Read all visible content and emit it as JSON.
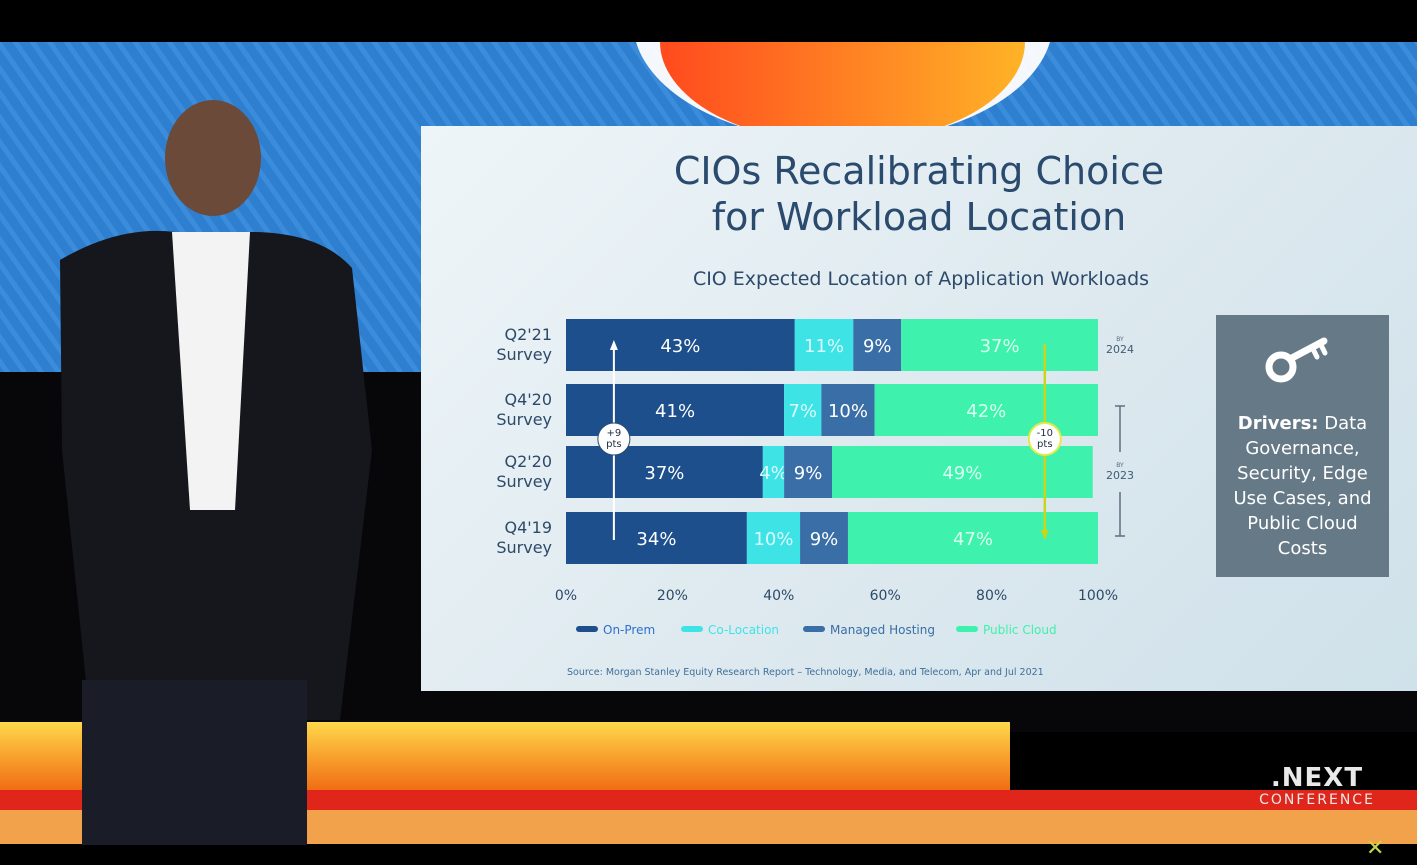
{
  "slide": {
    "title_line1": "CIOs Recalibrating Choice",
    "title_line2": "for Workload Location"
  },
  "drivers": {
    "label": "Drivers:",
    "text": "Data Governance, Security, Edge Use Cases, and Public Cloud Costs"
  },
  "branding": {
    "logo_line1": ".NEXT",
    "logo_line2": "CONFERENCE"
  },
  "colors": {
    "on_prem": "#1d4f8c",
    "co_location": "#3ee3e6",
    "managed_hosting": "#3a6ea6",
    "public_cloud": "#3ef2ad",
    "title": "#2a4a6e"
  },
  "chart_data": {
    "type": "bar",
    "orientation": "horizontal",
    "stacked": true,
    "title": "CIO Expected Location of Application Workloads",
    "categories": [
      "Q2'21\nSurvey",
      "Q4'20\nSurvey",
      "Q2'20\nSurvey",
      "Q4'19\nSurvey"
    ],
    "series": [
      {
        "name": "On-Prem",
        "values": [
          43,
          41,
          37,
          34
        ],
        "labels": [
          "43%",
          "41%",
          "37%",
          "34%"
        ]
      },
      {
        "name": "Co-Location",
        "values": [
          11,
          7,
          4,
          10
        ],
        "labels": [
          "11%",
          "7%",
          "4%",
          "10%"
        ]
      },
      {
        "name": "Managed Hosting",
        "values": [
          9,
          10,
          9,
          9
        ],
        "labels": [
          "9%",
          "10%",
          "9%",
          "9%"
        ]
      },
      {
        "name": "Public Cloud",
        "values": [
          37,
          42,
          49,
          47
        ],
        "labels": [
          "37%",
          "42%",
          "49%",
          "47%"
        ]
      }
    ],
    "xlim": [
      0,
      100
    ],
    "xticks": [
      "0%",
      "20%",
      "40%",
      "60%",
      "80%",
      "100%"
    ],
    "legend_position": "bottom",
    "annotations": {
      "on_prem_change": {
        "line1": "+9",
        "line2": "pts",
        "at_value": 9
      },
      "cloud_change": {
        "line1": "-10",
        "line2": "pts",
        "at_value": 90
      },
      "by_label_top": {
        "line1": "BY",
        "line2": "2024"
      },
      "by_label_bottom": {
        "line1": "BY",
        "line2": "2023"
      }
    },
    "source": "Source: Morgan Stanley Equity Research Report – Technology, Media, and Telecom, Apr and Jul 2021"
  }
}
